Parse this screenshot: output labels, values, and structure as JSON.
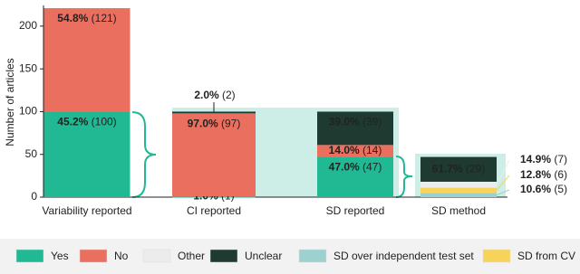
{
  "chart_data": {
    "type": "stacked_bar",
    "y_label": "Number of articles",
    "categories": [
      "Variability reported",
      "CI reported",
      "SD reported",
      "SD method"
    ],
    "ylim": [
      0,
      220
    ],
    "yticks": [
      0,
      50,
      100,
      150,
      200
    ],
    "series": [
      {
        "name": "SD over independent test set",
        "color": "#9dd1cf",
        "values": [
          null,
          null,
          null,
          5
        ],
        "value_labels": [
          null,
          null,
          null,
          "10.6% (5)"
        ]
      },
      {
        "name": "SD from CV",
        "color": "#f8d35a",
        "values": [
          null,
          null,
          null,
          6
        ],
        "value_labels": [
          null,
          null,
          null,
          "12.8% (6)"
        ]
      },
      {
        "name": "Yes",
        "color": "#21b994",
        "values": [
          100,
          1,
          47,
          null
        ],
        "value_labels": [
          "45.2% (100)",
          "1.0% (1)",
          "47.0% (47)",
          null
        ]
      },
      {
        "name": "No",
        "color": "#ea6f5e",
        "values": [
          121,
          97,
          14,
          null
        ],
        "value_labels": [
          "54.8% (121)",
          "97.0% (97)",
          "14.0% (14)",
          null
        ]
      },
      {
        "name": "Other",
        "color": "#ececec",
        "values": [
          null,
          null,
          null,
          7
        ],
        "value_labels": [
          null,
          null,
          null,
          "14.9% (7)"
        ]
      },
      {
        "name": "Unclear",
        "color": "#1e3a31",
        "values": [
          null,
          2,
          39,
          29
        ],
        "value_labels": [
          null,
          "2.0% (2)",
          "39.0% (39)",
          "61.7% (29)"
        ]
      }
    ]
  }
}
